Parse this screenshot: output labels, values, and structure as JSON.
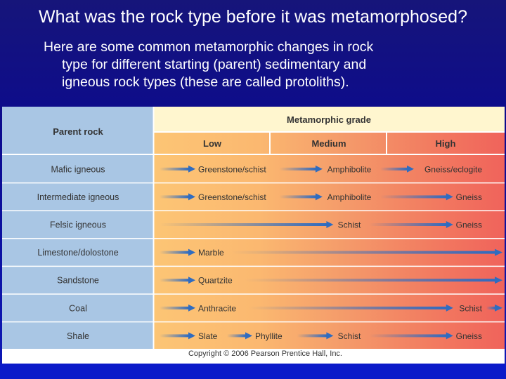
{
  "slide": {
    "title": "What was the rock type before it was metamorphosed?",
    "body_lines": [
      "Here are some common metamorphic changes in rock",
      "type for different starting (parent) sedimentary and",
      "igneous rock types (these are called protoliths)."
    ]
  },
  "table": {
    "parent_header": "Parent rock",
    "grade_header": "Metamorphic grade",
    "grade_columns": [
      "Low",
      "Medium",
      "High"
    ],
    "rows": [
      {
        "parent": "Mafic igneous",
        "products": [
          {
            "grade": "low",
            "name": "Greenstone/schist"
          },
          {
            "grade": "medium",
            "name": "Amphibolite"
          },
          {
            "grade": "high",
            "name": "Gneiss/eclogite"
          }
        ]
      },
      {
        "parent": "Intermediate igneous",
        "products": [
          {
            "grade": "low",
            "name": "Greenstone/schist"
          },
          {
            "grade": "medium",
            "name": "Amphibolite"
          },
          {
            "grade": "high",
            "name": "Gneiss"
          }
        ]
      },
      {
        "parent": "Felsic igneous",
        "products": [
          {
            "grade": "medium",
            "name": "Schist"
          },
          {
            "grade": "high",
            "name": "Gneiss"
          }
        ]
      },
      {
        "parent": "Limestone/dolostone",
        "products": [
          {
            "grade": "low",
            "name": "Marble"
          }
        ]
      },
      {
        "parent": "Sandstone",
        "products": [
          {
            "grade": "low",
            "name": "Quartzite"
          }
        ]
      },
      {
        "parent": "Coal",
        "products": [
          {
            "grade": "low",
            "name": "Anthracite"
          },
          {
            "grade": "high",
            "name": "Schist"
          }
        ]
      },
      {
        "parent": "Shale",
        "products": [
          {
            "grade": "low",
            "name": "Slate"
          },
          {
            "grade": "low-medium",
            "name": "Phyllite"
          },
          {
            "grade": "medium",
            "name": "Schist"
          },
          {
            "grade": "high",
            "name": "Gneiss"
          }
        ]
      }
    ],
    "colors": {
      "parent_panel": "#a9c6e4",
      "header_cream": "#fff6cf",
      "low": "#fcc575",
      "medium": "#f49a6a",
      "high": "#f0635b",
      "arrow": "#2f6cc0"
    }
  },
  "copyright": "Copyright © 2006 Pearson Prentice Hall, Inc."
}
